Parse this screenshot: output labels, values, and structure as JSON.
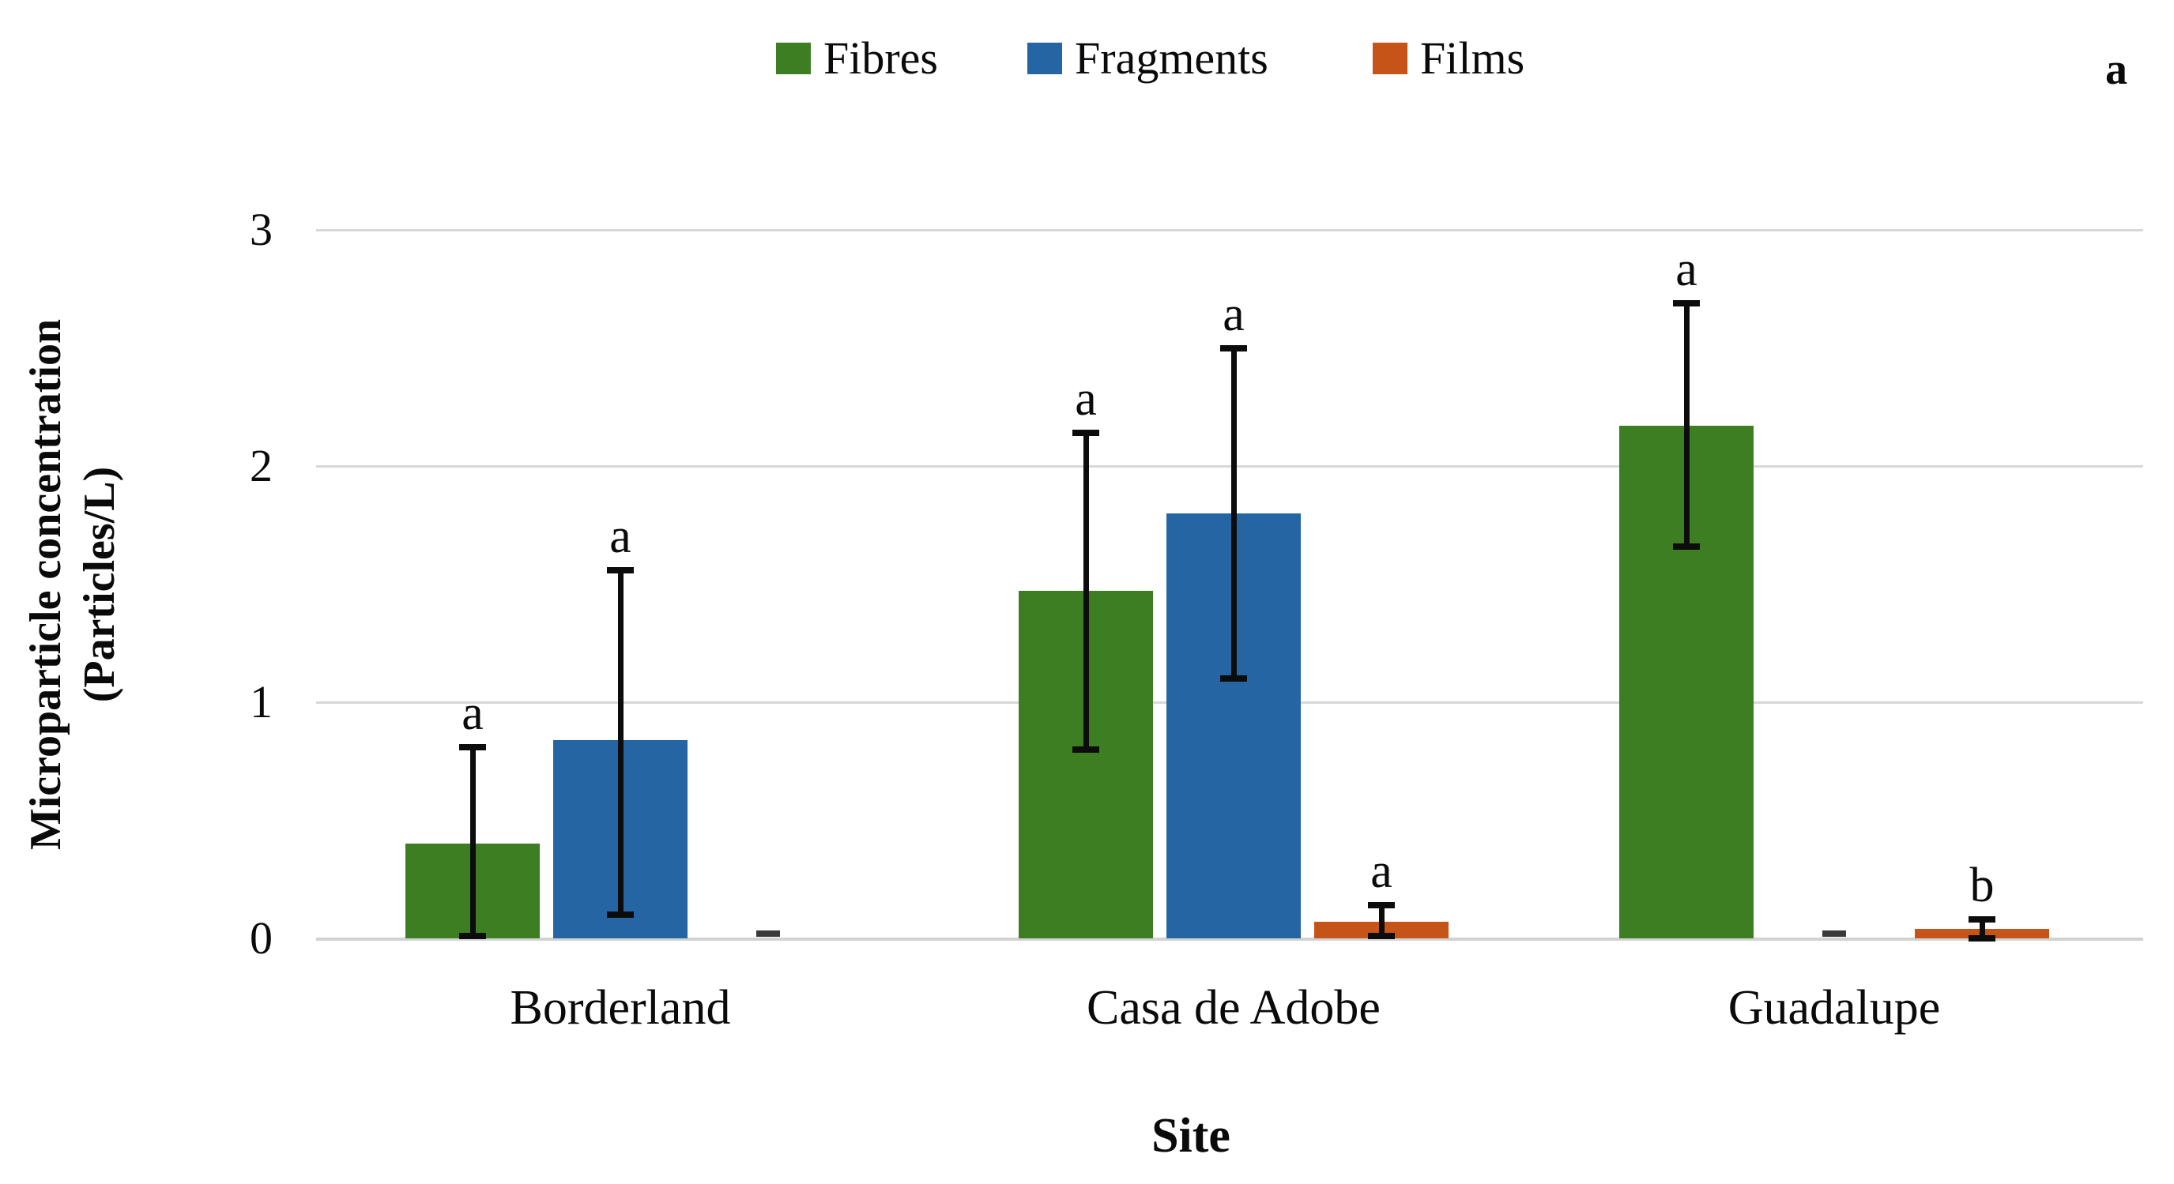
{
  "panel_label": "a",
  "y_axis": {
    "title_line1": "Microparticle concentration",
    "title_line2": "(Particles/L)",
    "ticks": [
      0,
      1,
      2,
      3
    ]
  },
  "x_axis": {
    "title": "Site"
  },
  "colors": {
    "fibres": "#3E7E23",
    "fragments": "#2565A3",
    "films": "#C65418",
    "gridline": "#D8D8D8",
    "error_bar": "#0C0C0C"
  },
  "chart_data": {
    "type": "bar",
    "title": "",
    "xlabel": "Site",
    "ylabel": "Microparticle concentration (Particles/L)",
    "ylim": [
      0,
      3
    ],
    "grid": "horizontal",
    "legend_position": "top-center",
    "categories": [
      "Borderland",
      "Casa de Adobe",
      "Guadalupe"
    ],
    "series": [
      {
        "name": "Fibres",
        "color": "#3E7E23",
        "values": [
          0.4,
          1.47,
          2.17
        ],
        "err_low": [
          0.01,
          0.8,
          1.66
        ],
        "err_high": [
          0.81,
          2.14,
          2.69
        ],
        "letters": [
          "a",
          "a",
          "a"
        ]
      },
      {
        "name": "Fragments",
        "color": "#2565A3",
        "values": [
          0.84,
          1.8,
          0.01
        ],
        "err_low": [
          0.1,
          1.1,
          null
        ],
        "err_high": [
          1.56,
          2.5,
          null
        ],
        "letters": [
          "a",
          "a",
          null
        ]
      },
      {
        "name": "Films",
        "color": "#C65418",
        "values": [
          0.0,
          0.07,
          0.04
        ],
        "err_low": [
          null,
          0.01,
          0.0
        ],
        "err_high": [
          null,
          0.14,
          0.08
        ],
        "letters": [
          null,
          "a",
          "b"
        ]
      }
    ]
  }
}
